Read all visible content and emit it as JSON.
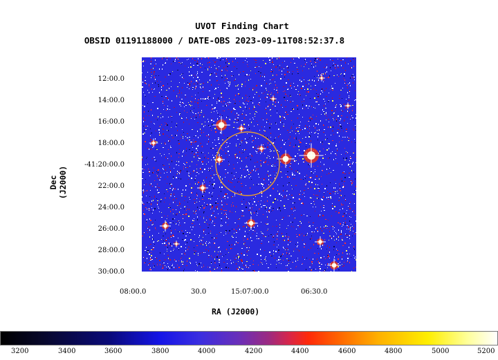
{
  "title": "UVOT Finding Chart",
  "subtitle": "OBSID 01191188000 / DATE-OBS 2023-09-11T08:52:37.8",
  "xlabel": "RA (J2000)",
  "ylabel": "Dec (J2000)",
  "y_ticks": [
    "12:00.0",
    "14:00.0",
    "16:00.0",
    "18:00.0",
    "-41:20:00.0",
    "22:00.0",
    "24:00.0",
    "26:00.0",
    "28:00.0",
    "30:00.0"
  ],
  "x_ticks": [
    "08:00.0",
    "30.0",
    "15:07:00.0",
    "06:30.0"
  ],
  "colorbar_ticks": [
    "3200",
    "3400",
    "3600",
    "3800",
    "4000",
    "4200",
    "4400",
    "4600",
    "4800",
    "5000",
    "5200"
  ],
  "colors": {
    "background": "#2a2ae0",
    "circle": "#e8a030"
  }
}
